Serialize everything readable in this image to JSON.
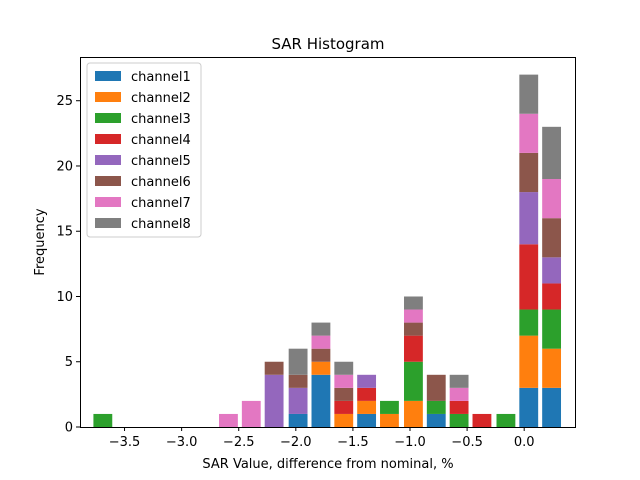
{
  "chart_data": {
    "type": "bar",
    "stacked": true,
    "title": "SAR Histogram",
    "xlabel": "SAR Value, difference from nominal, %",
    "ylabel": "Frequency",
    "xlim": [
      -3.89,
      0.445
    ],
    "ylim": [
      0,
      28.35
    ],
    "x_ticks": [
      -3.5,
      -3.0,
      -2.5,
      -2.0,
      -1.5,
      -1.0,
      -0.5,
      0.0
    ],
    "x_tick_labels": [
      "−3.5",
      "−3.0",
      "−2.5",
      "−2.0",
      "−1.5",
      "−1.0",
      "−0.5",
      "0.0"
    ],
    "y_ticks": [
      0,
      5,
      10,
      15,
      20,
      25
    ],
    "y_tick_labels": [
      "0",
      "5",
      "10",
      "15",
      "20",
      "25"
    ],
    "bar_width": 0.165,
    "bins": [
      -3.69,
      -2.59,
      -2.39,
      -2.19,
      -1.98,
      -1.78,
      -1.58,
      -1.38,
      -1.18,
      -0.97,
      -0.77,
      -0.57,
      -0.37,
      -0.16,
      0.04,
      0.24
    ],
    "legend_position": "upper-left",
    "series": [
      {
        "name": "channel1",
        "color": "#1f77b4",
        "values": [
          0,
          0,
          0,
          0,
          1,
          4,
          0,
          1,
          0,
          0,
          1,
          0,
          0,
          0,
          3,
          3
        ]
      },
      {
        "name": "channel2",
        "color": "#ff7f0e",
        "values": [
          0,
          0,
          0,
          0,
          0,
          1,
          1,
          1,
          1,
          2,
          0,
          0,
          0,
          0,
          4,
          3
        ]
      },
      {
        "name": "channel3",
        "color": "#2ca02c",
        "values": [
          1,
          0,
          0,
          0,
          0,
          0,
          0,
          0,
          1,
          3,
          1,
          1,
          0,
          1,
          2,
          3
        ]
      },
      {
        "name": "channel4",
        "color": "#d62728",
        "values": [
          0,
          0,
          0,
          0,
          0,
          0,
          1,
          1,
          0,
          2,
          0,
          1,
          1,
          0,
          5,
          2
        ]
      },
      {
        "name": "channel5",
        "color": "#9467bd",
        "values": [
          0,
          0,
          0,
          4,
          2,
          0,
          0,
          1,
          0,
          0,
          0,
          0,
          0,
          0,
          4,
          2
        ]
      },
      {
        "name": "channel6",
        "color": "#8c564b",
        "values": [
          0,
          0,
          0,
          1,
          1,
          1,
          1,
          0,
          0,
          1,
          2,
          0,
          0,
          0,
          3,
          3
        ]
      },
      {
        "name": "channel7",
        "color": "#e377c2",
        "values": [
          0,
          1,
          2,
          0,
          0,
          1,
          1,
          0,
          0,
          1,
          0,
          1,
          0,
          0,
          3,
          3
        ]
      },
      {
        "name": "channel8",
        "color": "#7f7f7f",
        "values": [
          0,
          0,
          0,
          0,
          2,
          1,
          1,
          0,
          0,
          1,
          0,
          1,
          0,
          0,
          3,
          4
        ]
      }
    ]
  }
}
